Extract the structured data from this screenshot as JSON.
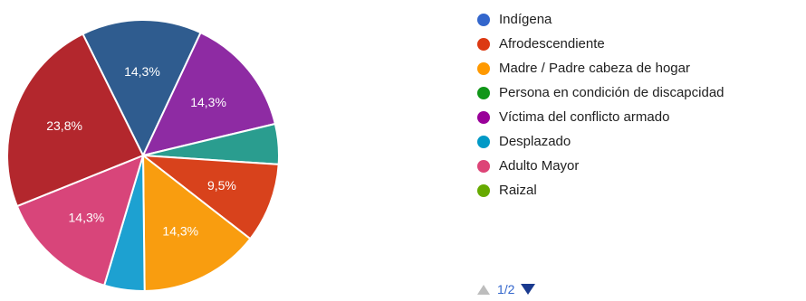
{
  "chart_data": {
    "type": "pie",
    "slices": [
      {
        "label": "Indígena",
        "value": 14.3,
        "display": "14,3%",
        "color": "#2f5c8f"
      },
      {
        "label": "Víctima del conflicto armado",
        "value": 14.3,
        "display": "14,3%",
        "color": "#8e2ba3"
      },
      {
        "label": "Desplazado",
        "value": 4.8,
        "display": "",
        "color": "#2a9d8f"
      },
      {
        "label": "Afrodescendiente",
        "value": 9.5,
        "display": "9,5%",
        "color": "#d8421c"
      },
      {
        "label": "Madre / Padre cabeza de hogar",
        "value": 14.3,
        "display": "14,3%",
        "color": "#f99d0f"
      },
      {
        "label": "Desplazado",
        "value": 4.8,
        "display": "",
        "color": "#1da1d1"
      },
      {
        "label": "Adulto Mayor",
        "value": 14.3,
        "display": "14,3%",
        "color": "#d8457a"
      },
      {
        "label": "Afrodescendiente",
        "value": 23.8,
        "display": "23,8%",
        "color": "#b3272d"
      }
    ],
    "legend": [
      {
        "label": "Indígena",
        "color": "#3366cc"
      },
      {
        "label": "Afrodescendiente",
        "color": "#dc3912"
      },
      {
        "label": "Madre / Padre cabeza de hogar",
        "color": "#ff9900"
      },
      {
        "label": "Persona en condición de discapcidad",
        "color": "#109618"
      },
      {
        "label": "Víctima del conflicto armado",
        "color": "#990099"
      },
      {
        "label": "Desplazado",
        "color": "#0099c6"
      },
      {
        "label": "Adulto Mayor",
        "color": "#dd4477"
      },
      {
        "label": "Raizal",
        "color": "#66aa00"
      }
    ],
    "legend_position": "right"
  },
  "pager": {
    "text": "1/2"
  }
}
